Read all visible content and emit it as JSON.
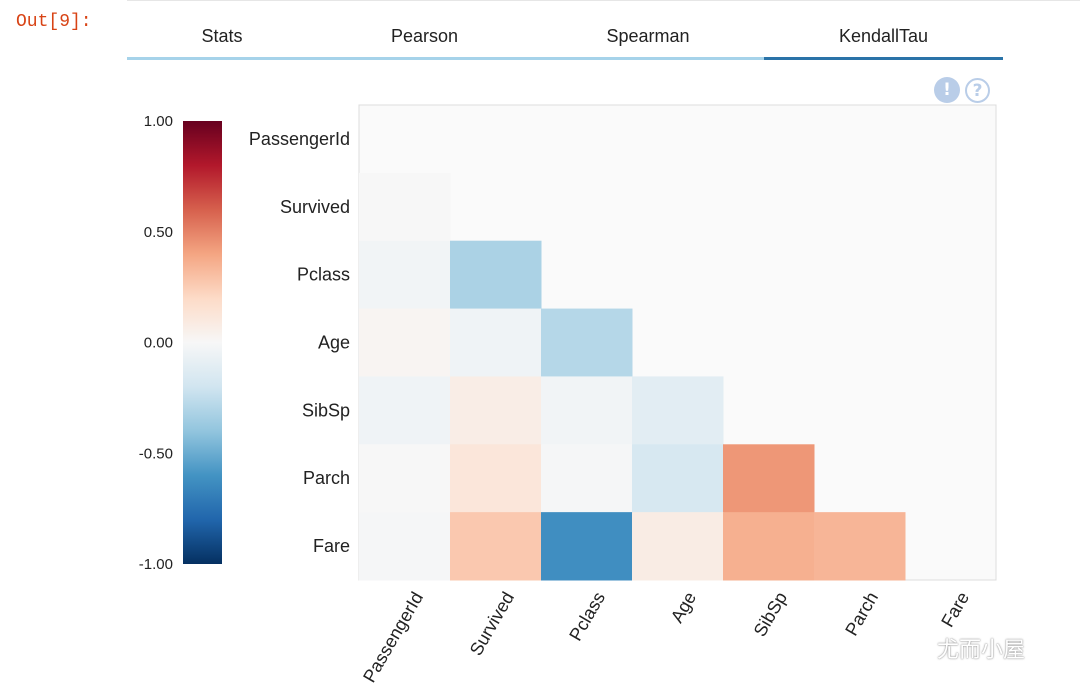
{
  "cell": {
    "prompt": "Out[9]:"
  },
  "tabs": [
    {
      "label": "Stats",
      "active": false
    },
    {
      "label": "Pearson",
      "active": false
    },
    {
      "label": "Spearman",
      "active": false
    },
    {
      "label": "KendallTau",
      "active": true
    }
  ],
  "icons": {
    "info": "!",
    "help": "?"
  },
  "colorbar": {
    "ticks": [
      "1.00",
      "0.50",
      "0.00",
      "-0.50",
      "-1.00"
    ],
    "tick_values": [
      1.0,
      0.5,
      0.0,
      -0.5,
      -1.0
    ],
    "colors": [
      "#67001f",
      "#b2182b",
      "#d6604d",
      "#f4a582",
      "#fddbc7",
      "#f7f7f7",
      "#d1e5f0",
      "#92c5de",
      "#4393c3",
      "#2166ac",
      "#053061"
    ]
  },
  "chart_data": {
    "type": "heatmap",
    "title": "",
    "rows": [
      "PassengerId",
      "Survived",
      "Pclass",
      "Age",
      "SibSp",
      "Parch",
      "Fare"
    ],
    "cols": [
      "PassengerId",
      "Survived",
      "Pclass",
      "Age",
      "SibSp",
      "Parch",
      "Fare"
    ],
    "value_range": [
      -1.0,
      1.0
    ],
    "mask": "upper-triangle-and-diagonal",
    "values": [
      [
        null,
        null,
        null,
        null,
        null,
        null,
        null
      ],
      [
        0.0,
        null,
        null,
        null,
        null,
        null,
        null
      ],
      [
        -0.03,
        -0.32,
        null,
        null,
        null,
        null,
        null
      ],
      [
        0.02,
        -0.04,
        -0.29,
        null,
        null,
        null,
        null
      ],
      [
        -0.04,
        0.07,
        -0.03,
        -0.11,
        null,
        null,
        null
      ],
      [
        0.0,
        0.12,
        -0.01,
        -0.17,
        0.44,
        null,
        null
      ],
      [
        -0.01,
        0.27,
        -0.62,
        0.08,
        0.36,
        0.34,
        null
      ]
    ]
  },
  "watermark": "尤而小屋"
}
